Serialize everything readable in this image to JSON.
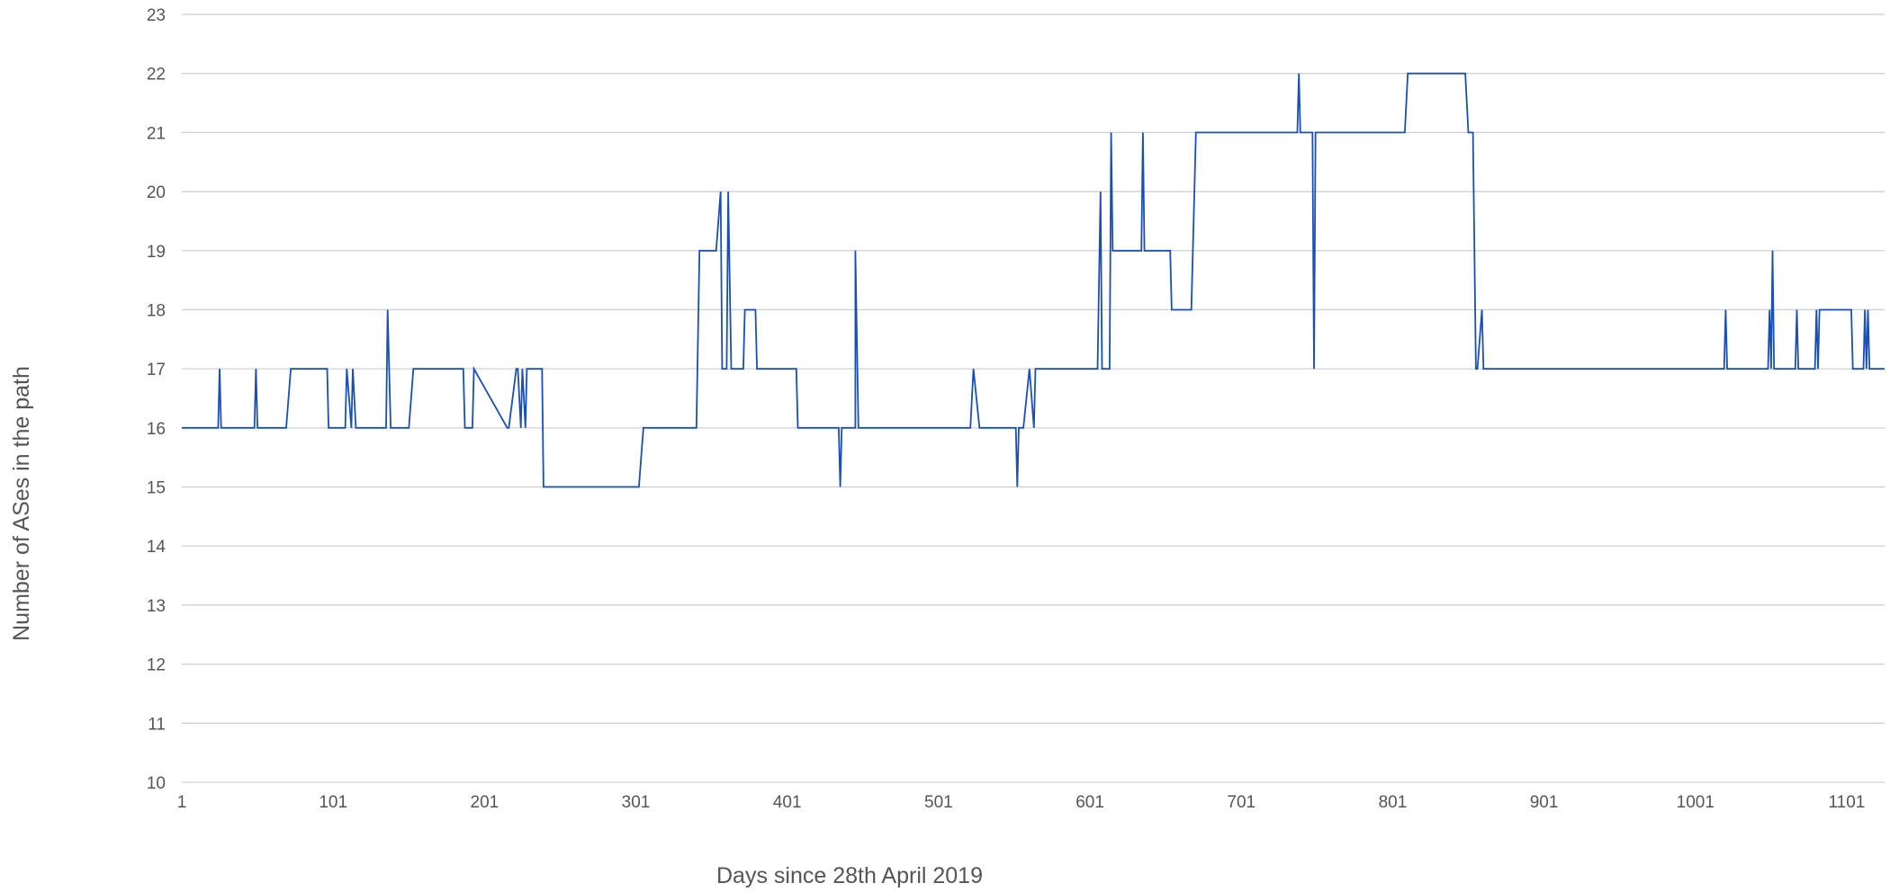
{
  "chart_data": {
    "type": "line",
    "title": "",
    "xlabel": "Days since 28th April 2019",
    "ylabel": "Number of ASes in the path",
    "xlim": [
      1,
      1126
    ],
    "ylim": [
      10,
      23
    ],
    "x_ticks": [
      "1",
      "101",
      "201",
      "301",
      "401",
      "501",
      "601",
      "701",
      "801",
      "901",
      "1001",
      "1101"
    ],
    "y_ticks": [
      "10",
      "11",
      "12",
      "13",
      "14",
      "15",
      "16",
      "17",
      "18",
      "19",
      "20",
      "21",
      "22",
      "23"
    ],
    "grid": true,
    "legend": "none",
    "line_color": "#1a4fb4",
    "series": [
      {
        "x": [
          1,
          25,
          26,
          27,
          49,
          50,
          51,
          70,
          73,
          97,
          98,
          109,
          110,
          113,
          114,
          116,
          117,
          136,
          137,
          139,
          151,
          154,
          187,
          188,
          193,
          194,
          216,
          217,
          222,
          223,
          225,
          226,
          228,
          229,
          239,
          240,
          242,
          303,
          306,
          341,
          343,
          354,
          357,
          358,
          361,
          362,
          364,
          372,
          373,
          380,
          381,
          407,
          408,
          435,
          436,
          437,
          446,
          446,
          448,
          522,
          524,
          528,
          530,
          552,
          553,
          554,
          557,
          561,
          564,
          565,
          568,
          606,
          608,
          609,
          614,
          615,
          616,
          635,
          636,
          637,
          654,
          655,
          668,
          671,
          738,
          739,
          740,
          748,
          749,
          750,
          809,
          811,
          849,
          851,
          854,
          856,
          857,
          860,
          861,
          863,
          1020,
          1021,
          1022,
          1024,
          1049,
          1050,
          1051,
          1052,
          1053,
          1055,
          1067,
          1068,
          1069,
          1080,
          1081,
          1082,
          1083,
          1104,
          1105,
          1112,
          1113,
          1114,
          1115,
          1116,
          1117,
          1126
        ],
        "y": [
          16,
          16,
          17,
          16,
          16,
          17,
          16,
          16,
          17,
          17,
          16,
          16,
          17,
          16,
          17,
          16,
          16,
          16,
          18,
          16,
          16,
          17,
          17,
          16,
          16,
          17,
          16,
          16,
          17,
          17,
          16,
          17,
          16,
          17,
          17,
          15,
          15,
          15,
          16,
          16,
          19,
          19,
          20,
          17,
          17,
          20,
          17,
          17,
          18,
          18,
          17,
          17,
          16,
          16,
          15,
          16,
          16,
          19,
          16,
          16,
          17,
          16,
          16,
          16,
          15,
          16,
          16,
          17,
          16,
          17,
          17,
          17,
          20,
          17,
          17,
          21,
          19,
          19,
          21,
          19,
          19,
          18,
          18,
          21,
          21,
          22,
          21,
          21,
          17,
          21,
          21,
          22,
          22,
          21,
          21,
          17,
          17,
          18,
          17,
          17,
          17,
          18,
          17,
          17,
          17,
          18,
          17,
          19,
          17,
          17,
          17,
          18,
          17,
          17,
          18,
          17,
          18,
          18,
          17,
          17,
          18,
          17,
          18,
          17,
          17,
          17
        ]
      }
    ]
  }
}
